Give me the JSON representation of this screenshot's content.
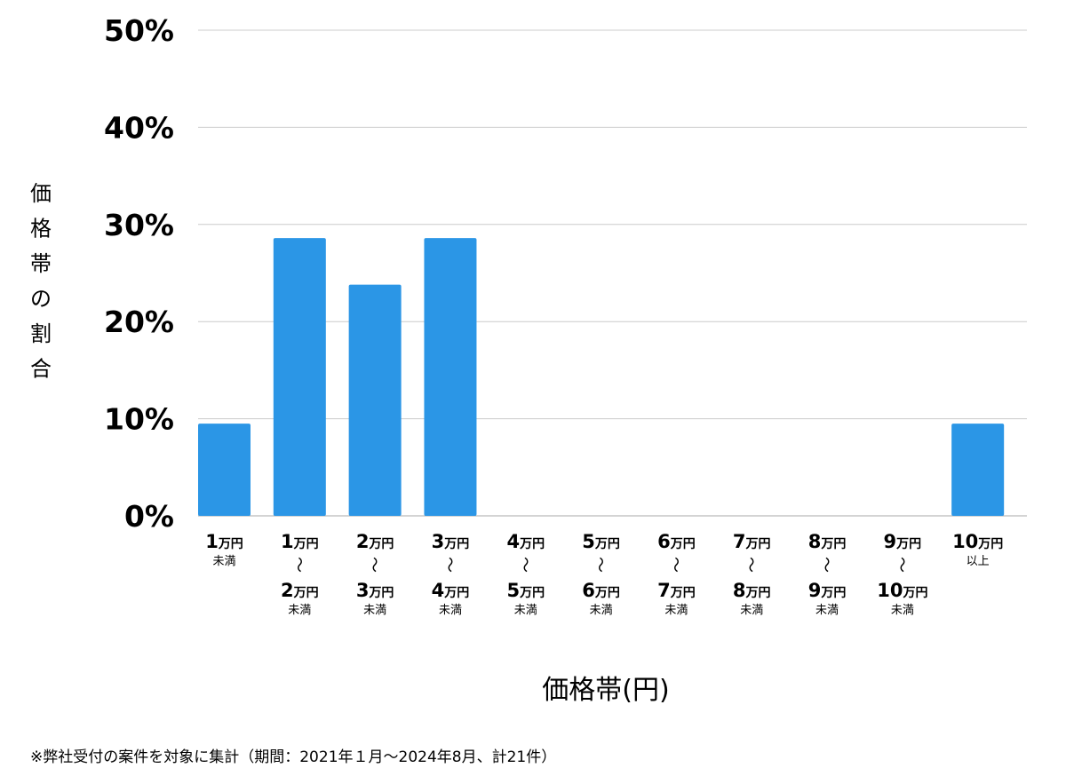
{
  "chart_data": {
    "type": "bar",
    "categories": [
      {
        "from": "1",
        "from_unit": "万円",
        "to": "",
        "to_unit": "",
        "suffix": "未満"
      },
      {
        "from": "1",
        "from_unit": "万円",
        "to": "2",
        "to_unit": "万円",
        "suffix": "未満"
      },
      {
        "from": "2",
        "from_unit": "万円",
        "to": "3",
        "to_unit": "万円",
        "suffix": "未満"
      },
      {
        "from": "3",
        "from_unit": "万円",
        "to": "4",
        "to_unit": "万円",
        "suffix": "未満"
      },
      {
        "from": "4",
        "from_unit": "万円",
        "to": "5",
        "to_unit": "万円",
        "suffix": "未満"
      },
      {
        "from": "5",
        "from_unit": "万円",
        "to": "6",
        "to_unit": "万円",
        "suffix": "未満"
      },
      {
        "from": "6",
        "from_unit": "万円",
        "to": "7",
        "to_unit": "万円",
        "suffix": "未満"
      },
      {
        "from": "7",
        "from_unit": "万円",
        "to": "8",
        "to_unit": "万円",
        "suffix": "未満"
      },
      {
        "from": "8",
        "from_unit": "万円",
        "to": "9",
        "to_unit": "万円",
        "suffix": "未満"
      },
      {
        "from": "9",
        "from_unit": "万円",
        "to": "10",
        "to_unit": "万円",
        "suffix": "未満"
      },
      {
        "from": "10",
        "from_unit": "万円",
        "to": "",
        "to_unit": "",
        "suffix": "以上"
      }
    ],
    "range_separator": "〜",
    "values": [
      9.5,
      28.6,
      23.8,
      28.6,
      0,
      0,
      0,
      0,
      0,
      0,
      9.5
    ],
    "ylim": [
      0,
      50
    ],
    "yticks": [
      0,
      10,
      20,
      30,
      40,
      50
    ],
    "ytick_suffix": "%",
    "ylabel": "価格帯の割合",
    "xlabel": "価格帯(円)",
    "grid": true,
    "bar_color": "#2b96e6",
    "grid_color": "#cccccc"
  },
  "footnote": "※弊社受付の案件を対象に集計（期間：2021年１月〜2024年8月、計21件）"
}
